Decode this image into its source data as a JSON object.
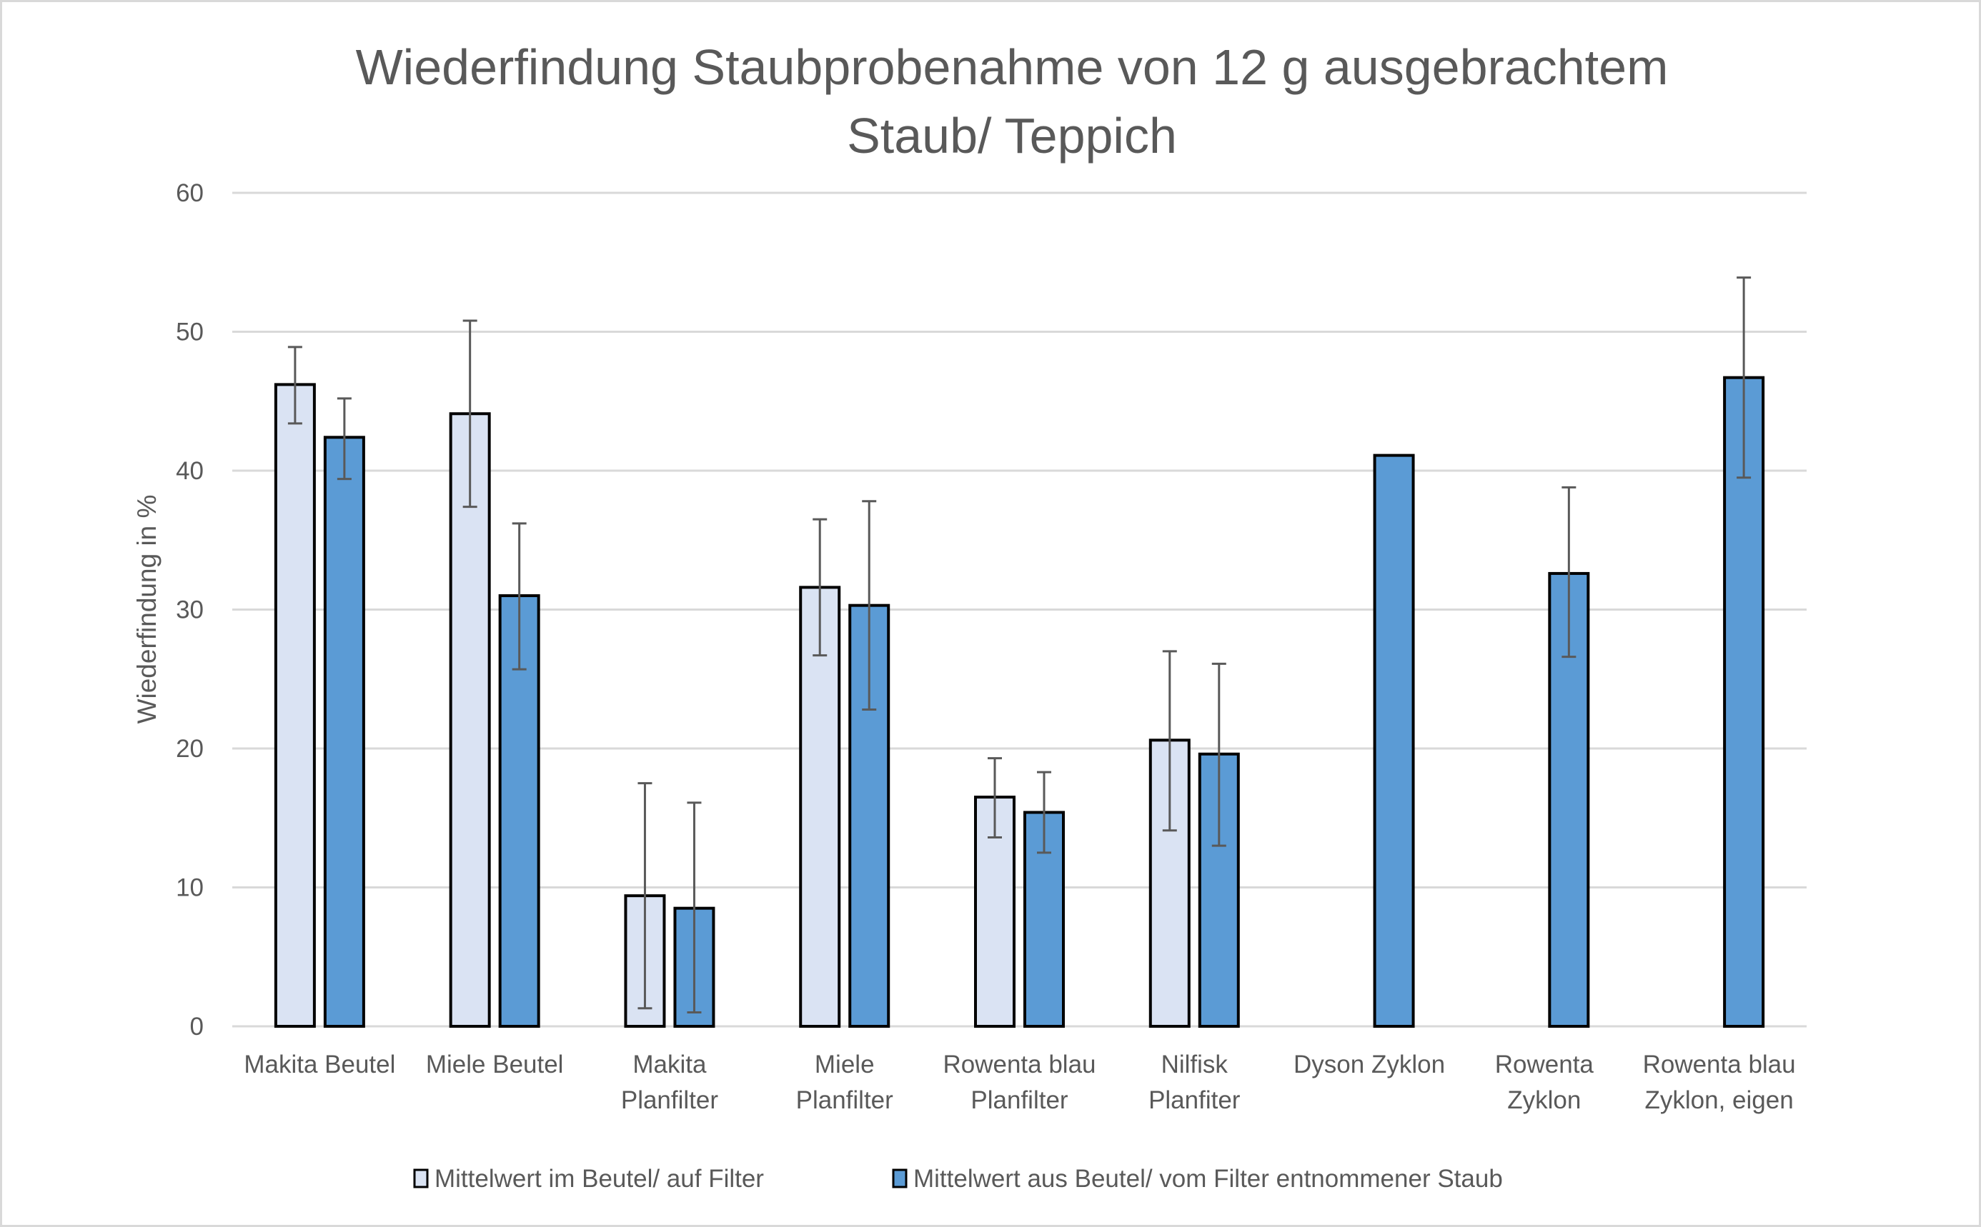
{
  "chart_data": {
    "type": "bar",
    "title": [
      "Wiederfindung Staubprobenahme von 12 g ausgebrachtem",
      "Staub/ Teppich"
    ],
    "xlabel": "",
    "ylabel": "Wiederfindung in %",
    "ylim": [
      0,
      60
    ],
    "yticks": [
      0,
      10,
      20,
      30,
      40,
      50,
      60
    ],
    "grid": true,
    "legend_position": "bottom",
    "categories": [
      [
        "Makita Beutel"
      ],
      [
        "Miele Beutel"
      ],
      [
        "Makita",
        "Planfilter"
      ],
      [
        "Miele",
        "Planfilter"
      ],
      [
        "Rowenta blau",
        "Planfilter"
      ],
      [
        "Nilfisk",
        "Planfiter"
      ],
      [
        "Dyson Zyklon"
      ],
      [
        "Rowenta",
        "Zyklon"
      ],
      [
        "Rowenta blau",
        "Zyklon, eigen"
      ]
    ],
    "series": [
      {
        "name": "Mittelwert im Beutel/ auf Filter",
        "color": "#dae3f3",
        "values": [
          46.2,
          44.1,
          9.4,
          31.6,
          16.5,
          20.6,
          null,
          null,
          null
        ],
        "error_low": [
          43.4,
          37.4,
          1.3,
          26.7,
          13.6,
          14.1,
          null,
          null,
          null
        ],
        "error_high": [
          48.9,
          50.8,
          17.5,
          36.5,
          19.3,
          27.0,
          null,
          null,
          null
        ]
      },
      {
        "name": "Mittelwert aus Beutel/ vom Filter entnommener Staub",
        "color": "#5b9bd5",
        "values": [
          42.4,
          31.0,
          8.5,
          30.3,
          15.4,
          19.6,
          41.1,
          32.6,
          46.7
        ],
        "error_low": [
          39.4,
          25.7,
          1.0,
          22.8,
          12.5,
          13.0,
          null,
          26.6,
          39.5
        ],
        "error_high": [
          45.2,
          36.2,
          16.1,
          37.8,
          18.3,
          26.1,
          null,
          38.8,
          53.9
        ]
      }
    ]
  },
  "colors": {
    "text": "#595959",
    "gridline": "#d9d9d9",
    "bar_outline": "#000000",
    "error_bar": "#595959"
  }
}
